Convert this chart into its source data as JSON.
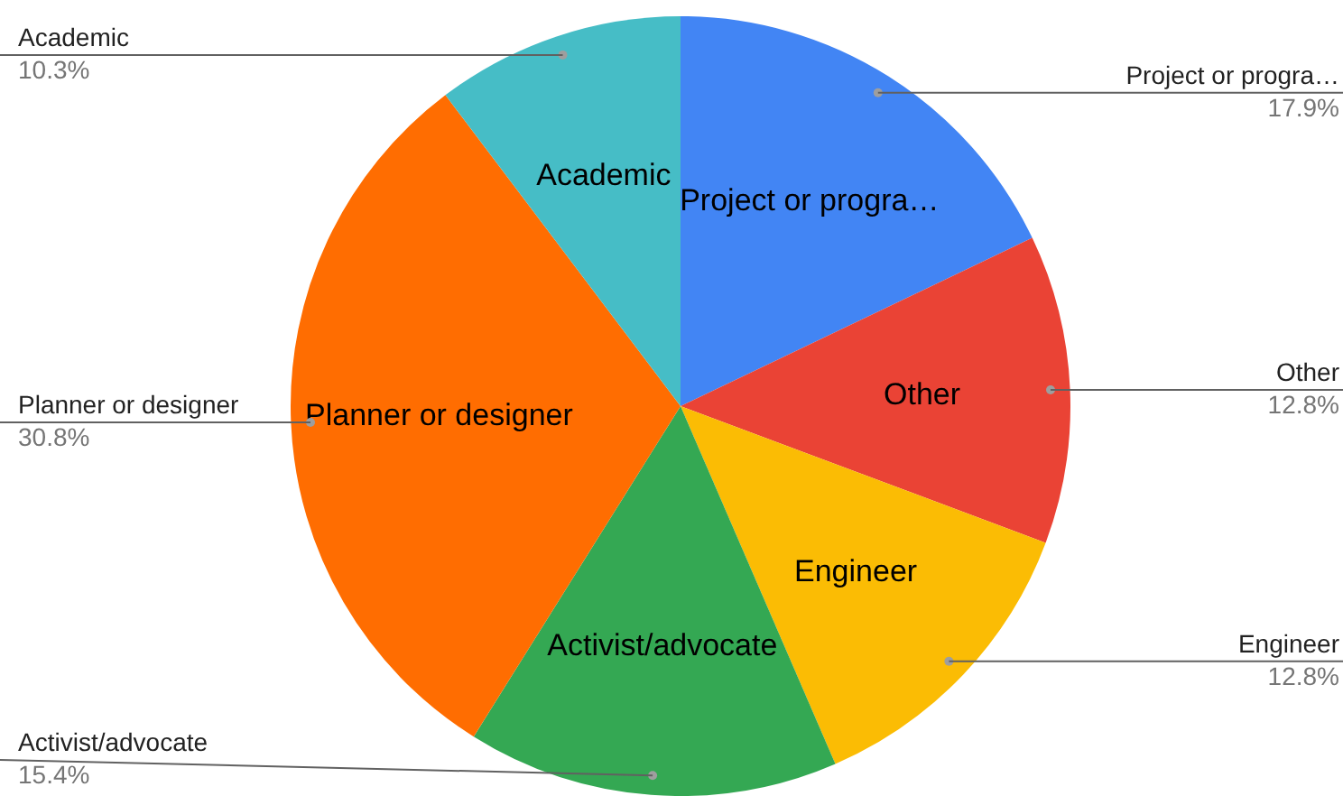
{
  "chart_data": {
    "type": "pie",
    "categories": [
      "Project or progra…",
      "Other",
      "Engineer",
      "Activist/advocate",
      "Planner or designer",
      "Academic"
    ],
    "values": [
      17.9,
      12.8,
      12.8,
      15.4,
      30.8,
      10.3
    ],
    "colors": [
      "#4285f4",
      "#ea4335",
      "#fbbc04",
      "#34a853",
      "#ff6d01",
      "#46bdc6"
    ],
    "value_labels": [
      "17.9%",
      "12.8%",
      "12.8%",
      "15.4%",
      "30.8%",
      "10.3%"
    ],
    "legend": false
  }
}
